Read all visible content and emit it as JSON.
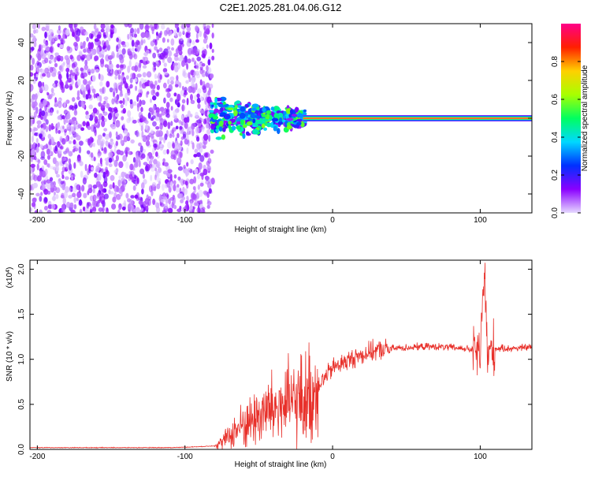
{
  "title": "C2E1.2025.281.04.06.G12",
  "chart_data": [
    {
      "type": "heatmap",
      "xlabel": "Height of straight line (km)",
      "ylabel": "Frequency (Hz)",
      "xlim": [
        -205,
        135
      ],
      "ylim": [
        -50,
        50
      ],
      "xticks": [
        -200,
        -100,
        0,
        100
      ],
      "yticks": [
        -40,
        -20,
        0,
        20,
        40
      ],
      "colorbar": {
        "label": "Normalized spectral amplitude",
        "range": [
          0.0,
          1.0
        ],
        "ticks": [
          "0.0",
          "0.2",
          "0.4",
          "0.6",
          "0.8"
        ],
        "colors": [
          "#e6d9ff",
          "#8a00ff",
          "#0030ff",
          "#00d8ff",
          "#00ff60",
          "#a8ff00",
          "#ffd000",
          "#ff2000",
          "#ff0088"
        ]
      },
      "regions": [
        {
          "x_range": [
            -205,
            -81
          ],
          "freq_range": [
            -50,
            50
          ],
          "amplitude_range": [
            0.0,
            0.15
          ]
        },
        {
          "x_range": [
            -82,
            -18
          ],
          "freq_range": [
            -14,
            12
          ],
          "amplitude_range": [
            0.1,
            0.6
          ]
        },
        {
          "x_range": [
            -20,
            135
          ],
          "freq_range": [
            -1,
            1
          ],
          "amplitude_range": [
            0.8,
            1.0
          ]
        }
      ]
    },
    {
      "type": "line",
      "xlabel": "Height of straight line (km)",
      "ylabel": "SNR (10 * v/v)",
      "y_multiplier": "(x10",
      "y_multiplier_exp": "4",
      "y_multiplier_close": ")",
      "xlim": [
        -205,
        135
      ],
      "ylim": [
        0.0,
        2.1
      ],
      "xticks": [
        -200,
        -100,
        0,
        100
      ],
      "yticks": [
        "0.0",
        "0.5",
        "1.0",
        "1.5",
        "2.0"
      ],
      "color": "#e8302a",
      "series": [
        {
          "x": [
            -205,
            -190,
            -170,
            -150,
            -130,
            -110,
            -90,
            -80,
            -75,
            -70,
            -65,
            -60,
            -55,
            -50,
            -45,
            -40,
            -35,
            -30,
            -25,
            -20,
            -15,
            -10,
            -5,
            0,
            5,
            10,
            15,
            20,
            25,
            30,
            40,
            50,
            60,
            70,
            80,
            90,
            95,
            100,
            103,
            105,
            107,
            110,
            120,
            130,
            135
          ],
          "y": [
            0.02,
            0.02,
            0.02,
            0.02,
            0.02,
            0.02,
            0.03,
            0.04,
            0.08,
            0.15,
            0.22,
            0.28,
            0.32,
            0.38,
            0.42,
            0.45,
            0.48,
            0.5,
            0.52,
            0.55,
            0.6,
            0.72,
            0.8,
            0.9,
            0.95,
            0.98,
            1.02,
            1.05,
            1.08,
            1.1,
            1.12,
            1.13,
            1.14,
            1.14,
            1.13,
            1.12,
            1.1,
            1.05,
            2.0,
            1.0,
            1.1,
            1.12,
            1.12,
            1.13,
            1.14
          ]
        }
      ]
    }
  ]
}
